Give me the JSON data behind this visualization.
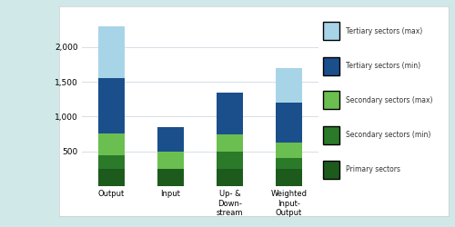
{
  "categories": [
    "Output",
    "Input",
    "Up- &\nDown-\nstream",
    "Weighted\nInput-\nOutput"
  ],
  "segments": {
    "primary": [
      252,
      252,
      252,
      252
    ],
    "sec_min_seg": [
      198,
      0,
      248,
      148
    ],
    "sec_max_seg": [
      302,
      248,
      250,
      225
    ],
    "ter_min_seg": [
      798,
      352,
      600,
      575
    ],
    "ter_max_seg": [
      750,
      0,
      0,
      500
    ]
  },
  "colors": {
    "primary": "#1c5b1c",
    "sec_min": "#2a7a2a",
    "sec_max": "#6abf50",
    "ter_min": "#1a4f8c",
    "ter_max": "#a8d4e8"
  },
  "legend_labels": [
    "Tertiary sectors (max)",
    "Tertiary sectors (min)",
    "Secondary sectors (max)",
    "Secondary sectors (min)",
    "Primary sectors"
  ],
  "ylim": [
    0,
    2450
  ],
  "yticks": [
    500,
    1000,
    1500,
    2000
  ],
  "bar_width": 0.45,
  "fig_bg": "#d0e8e8",
  "chart_bg": "#ffffff",
  "grid_color": "#d0d8e0"
}
